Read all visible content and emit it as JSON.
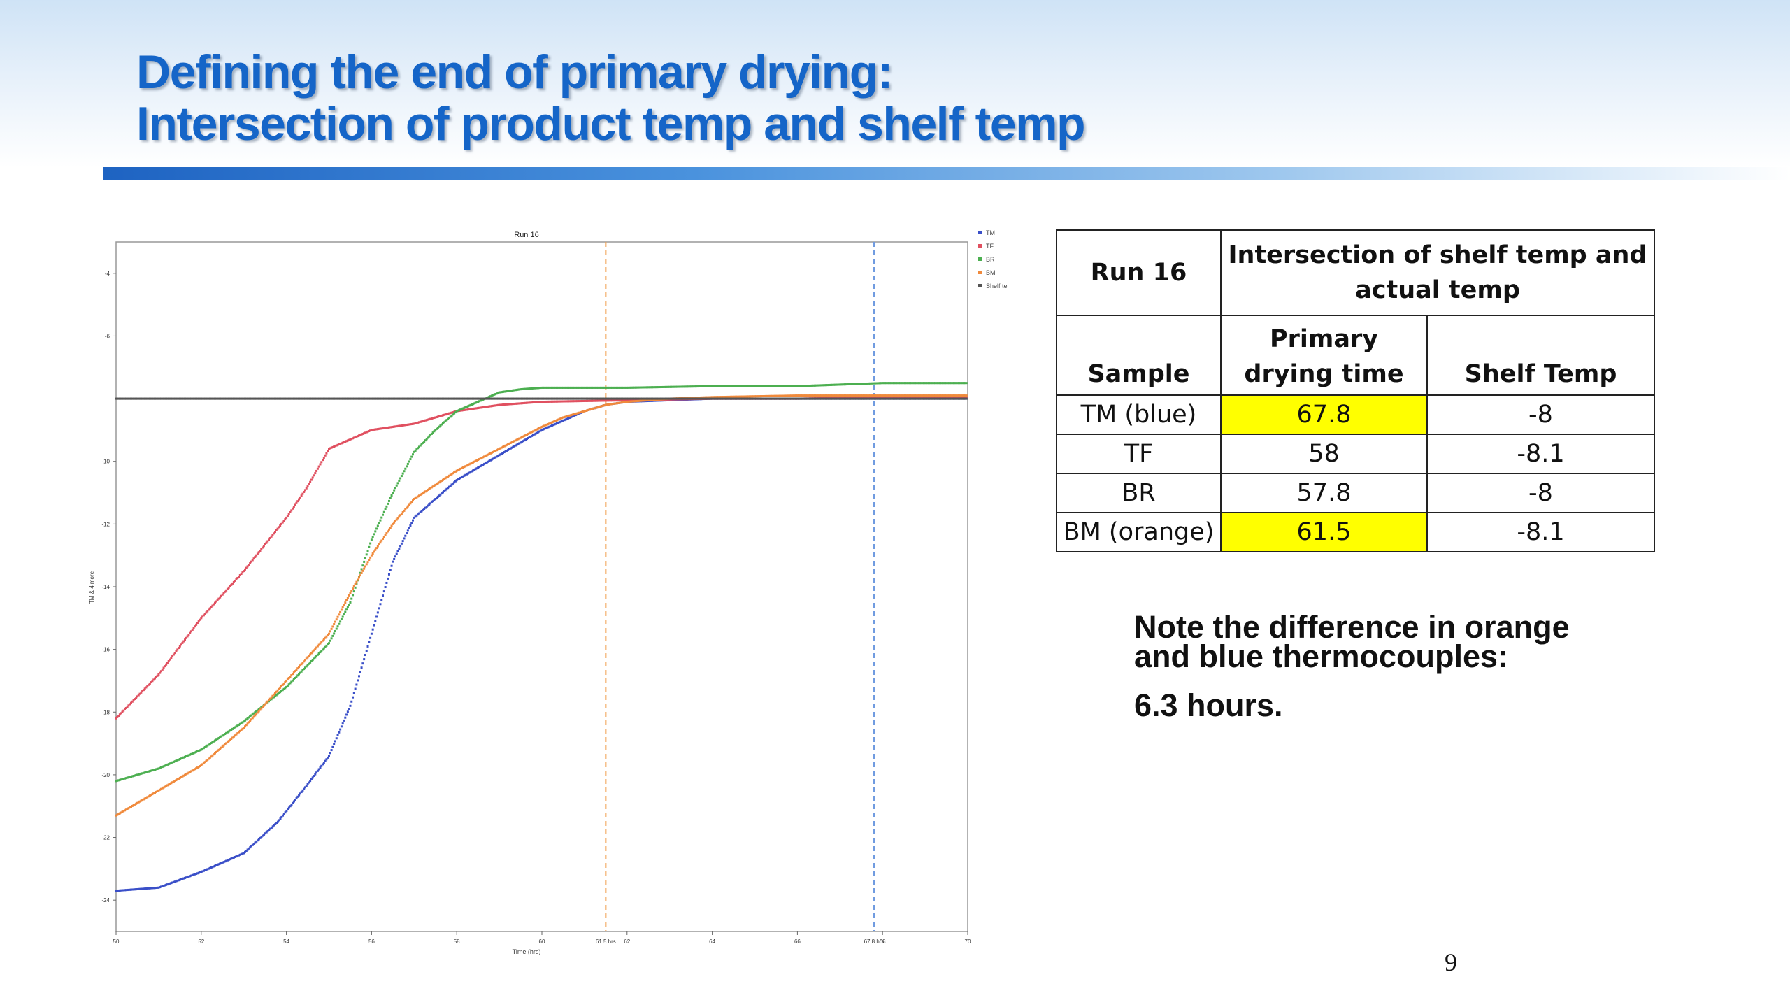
{
  "slide": {
    "title_line1": "Defining the end of primary drying:",
    "title_line2": "Intersection of product temp and shelf temp",
    "page_number": "9"
  },
  "table": {
    "run_label": "Run 16",
    "group_header": "Intersection of shelf temp and actual temp",
    "col_sample": "Sample",
    "col_primary_drying": "Primary drying time",
    "col_shelf_temp": "Shelf Temp",
    "highlight_color": "#ffff00",
    "rows": [
      {
        "sample": "TM (blue)",
        "primary_drying_time": "67.8",
        "shelf_temp": "-8",
        "highlighted": true
      },
      {
        "sample": "TF",
        "primary_drying_time": "58",
        "shelf_temp": "-8.1",
        "highlighted": false
      },
      {
        "sample": "BR",
        "primary_drying_time": "57.8",
        "shelf_temp": "-8",
        "highlighted": false
      },
      {
        "sample": "BM (orange)",
        "primary_drying_time": "61.5",
        "shelf_temp": "-8.1",
        "highlighted": true
      }
    ]
  },
  "note": {
    "line1": "Note the difference in orange",
    "line2": "and blue thermocouples:",
    "line3": "6.3 hours."
  },
  "chart_data": {
    "type": "scatter",
    "title": "Run 16",
    "xlabel": "Time (hrs)",
    "ylabel": "TM & 4 more",
    "xlim": [
      50,
      70
    ],
    "ylim": [
      -25,
      -3
    ],
    "x_ticks": [
      50,
      52,
      54,
      56,
      58,
      60,
      62,
      64,
      66,
      68,
      70
    ],
    "x_tick_labels": [
      "50",
      "52",
      "54",
      "56",
      "58",
      "60",
      "62",
      "64",
      "66",
      "68",
      "70"
    ],
    "y_ticks": [
      -4,
      -6,
      -10,
      -12,
      -14,
      -16,
      -18,
      -20,
      -22,
      -24
    ],
    "y_tick_labels": [
      "-4",
      "-6",
      "-10",
      "-12",
      "-14",
      "-16",
      "-18",
      "-20",
      "-22",
      "-24"
    ],
    "marker_lines": [
      {
        "x": 61.5,
        "label": "61.5 hrs",
        "color": "#f0a050"
      },
      {
        "x": 67.8,
        "label": "67.8 hrs",
        "color": "#6f9be0"
      }
    ],
    "legend_position": "top-right",
    "series": [
      {
        "name": "TM",
        "color": "#3a4fc8",
        "points": [
          [
            50,
            -23.7
          ],
          [
            51,
            -23.6
          ],
          [
            52,
            -23.1
          ],
          [
            53,
            -22.5
          ],
          [
            53.8,
            -21.5
          ],
          [
            54.5,
            -20.3
          ],
          [
            55,
            -19.4
          ],
          [
            55.5,
            -17.8
          ],
          [
            56,
            -15.5
          ],
          [
            56.5,
            -13.2
          ],
          [
            57,
            -11.8
          ],
          [
            57.5,
            -11.2
          ],
          [
            58,
            -10.6
          ],
          [
            58.5,
            -10.2
          ],
          [
            59,
            -9.8
          ],
          [
            59.5,
            -9.4
          ],
          [
            60,
            -9.0
          ],
          [
            60.5,
            -8.7
          ],
          [
            61,
            -8.4
          ],
          [
            61.5,
            -8.2
          ],
          [
            62,
            -8.1
          ],
          [
            63,
            -8.05
          ],
          [
            64,
            -8.0
          ],
          [
            65,
            -8.0
          ],
          [
            66,
            -8.0
          ],
          [
            67,
            -8.0
          ],
          [
            68,
            -8.0
          ],
          [
            70,
            -8.0
          ]
        ]
      },
      {
        "name": "TF",
        "color": "#e05060",
        "points": [
          [
            50,
            -18.2
          ],
          [
            51,
            -16.8
          ],
          [
            52,
            -15.0
          ],
          [
            53,
            -13.5
          ],
          [
            54,
            -11.8
          ],
          [
            54.5,
            -10.8
          ],
          [
            55,
            -9.6
          ],
          [
            55.5,
            -9.3
          ],
          [
            56,
            -9.0
          ],
          [
            57,
            -8.8
          ],
          [
            58,
            -8.4
          ],
          [
            59,
            -8.2
          ],
          [
            60,
            -8.1
          ],
          [
            62,
            -8.05
          ],
          [
            64,
            -8.0
          ],
          [
            66,
            -8.0
          ],
          [
            68,
            -7.95
          ],
          [
            70,
            -7.95
          ]
        ]
      },
      {
        "name": "BR",
        "color": "#4caf50",
        "points": [
          [
            50,
            -20.2
          ],
          [
            51,
            -19.8
          ],
          [
            52,
            -19.2
          ],
          [
            53,
            -18.3
          ],
          [
            54,
            -17.2
          ],
          [
            55,
            -15.8
          ],
          [
            55.5,
            -14.5
          ],
          [
            56,
            -12.5
          ],
          [
            56.5,
            -11.0
          ],
          [
            57,
            -9.7
          ],
          [
            57.5,
            -9.0
          ],
          [
            58,
            -8.4
          ],
          [
            58.5,
            -8.1
          ],
          [
            59,
            -7.8
          ],
          [
            59.5,
            -7.7
          ],
          [
            60,
            -7.65
          ],
          [
            62,
            -7.65
          ],
          [
            64,
            -7.6
          ],
          [
            66,
            -7.6
          ],
          [
            68,
            -7.5
          ],
          [
            70,
            -7.5
          ]
        ]
      },
      {
        "name": "BM",
        "color": "#f08a3c",
        "points": [
          [
            50,
            -21.3
          ],
          [
            51,
            -20.5
          ],
          [
            52,
            -19.7
          ],
          [
            53,
            -18.5
          ],
          [
            54,
            -17.0
          ],
          [
            55,
            -15.5
          ],
          [
            55.5,
            -14.2
          ],
          [
            56,
            -13.0
          ],
          [
            56.5,
            -12.0
          ],
          [
            57,
            -11.2
          ],
          [
            58,
            -10.3
          ],
          [
            59,
            -9.6
          ],
          [
            60,
            -8.9
          ],
          [
            60.5,
            -8.6
          ],
          [
            61,
            -8.4
          ],
          [
            61.5,
            -8.2
          ],
          [
            62,
            -8.1
          ],
          [
            63,
            -8.0
          ],
          [
            64,
            -7.95
          ],
          [
            66,
            -7.9
          ],
          [
            68,
            -7.9
          ],
          [
            70,
            -7.9
          ]
        ]
      },
      {
        "name": "Shelf te",
        "color": "#555555",
        "points": [
          [
            50,
            -8.0
          ],
          [
            52,
            -8.0
          ],
          [
            54,
            -8.0
          ],
          [
            56,
            -8.0
          ],
          [
            58,
            -8.0
          ],
          [
            60,
            -8.0
          ],
          [
            62,
            -8.0
          ],
          [
            64,
            -8.0
          ],
          [
            66,
            -8.0
          ],
          [
            68,
            -8.0
          ],
          [
            70,
            -8.0
          ]
        ]
      }
    ]
  }
}
